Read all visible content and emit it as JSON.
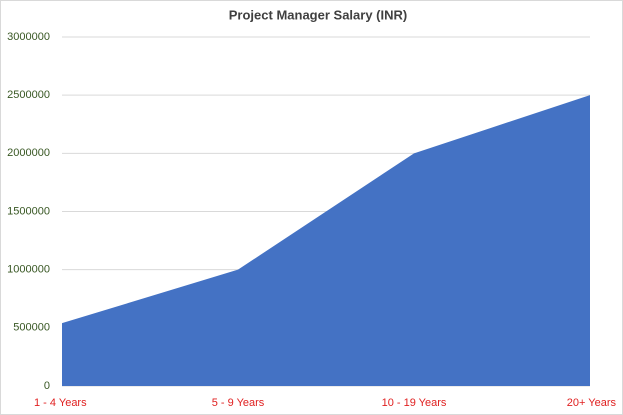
{
  "chart_data": {
    "type": "area",
    "title": "Project Manager Salary (INR)",
    "categories": [
      "1 - 4 Years",
      "5 - 9 Years",
      "10 - 19 Years",
      "20+ Years"
    ],
    "values": [
      540000,
      1000000,
      2000000,
      2500000
    ],
    "color": "#4472c4",
    "ylim": [
      0,
      3000000
    ],
    "yticks": [
      0,
      500000,
      1000000,
      1500000,
      2000000,
      2500000,
      3000000
    ],
    "grid": true
  }
}
